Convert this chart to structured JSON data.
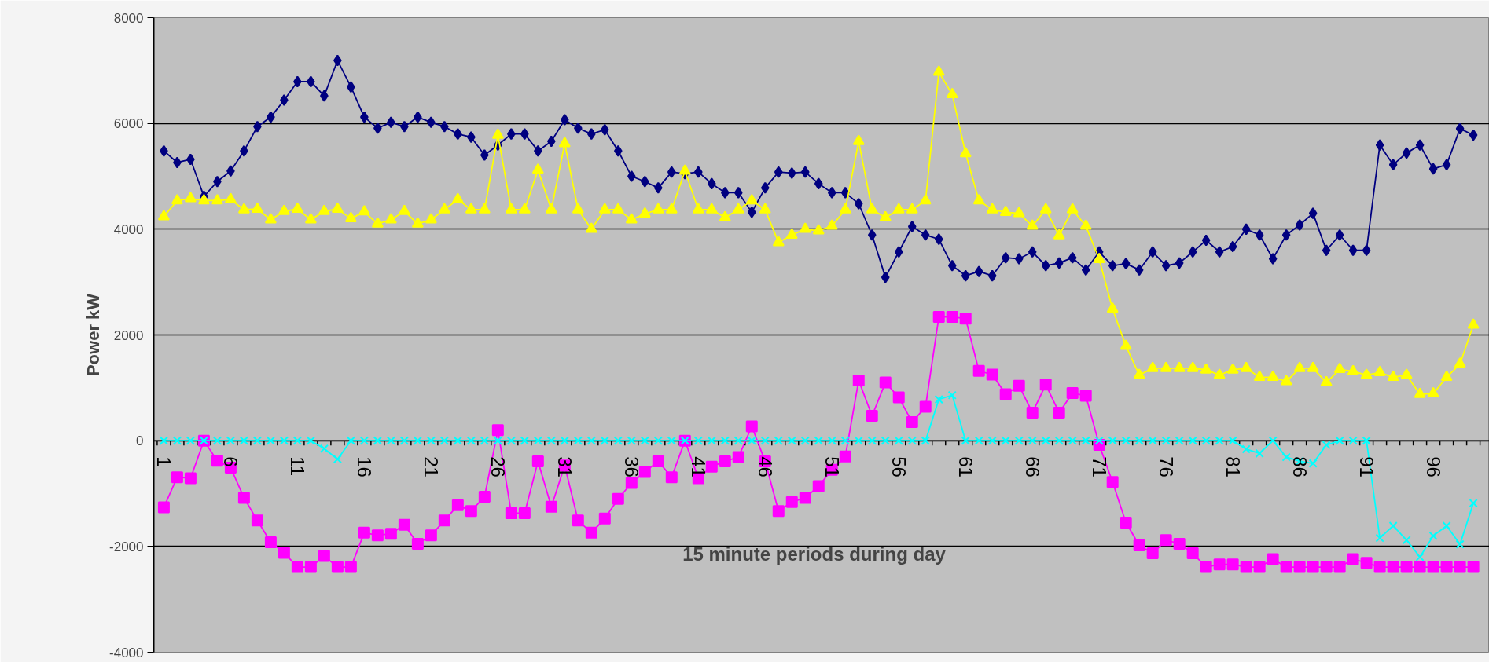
{
  "chart_data": {
    "type": "line",
    "xlabel": "15 minute periods during day",
    "ylabel": "Power kW",
    "categories": [
      "1",
      null,
      null,
      null,
      null,
      "6",
      null,
      null,
      null,
      null,
      "11",
      null,
      null,
      null,
      null,
      "16",
      null,
      null,
      null,
      null,
      "21",
      null,
      null,
      null,
      null,
      "26",
      null,
      null,
      null,
      null,
      "31",
      null,
      null,
      null,
      null,
      "36",
      null,
      null,
      null,
      null,
      "41",
      null,
      null,
      null,
      null,
      "46",
      null,
      null,
      null,
      null,
      "51",
      null,
      null,
      null,
      null,
      "56",
      null,
      null,
      null,
      null,
      "61",
      null,
      null,
      null,
      null,
      "66",
      null,
      null,
      null,
      null,
      "71",
      null,
      null,
      null,
      null,
      "76",
      null,
      null,
      null,
      null,
      "81",
      null,
      null,
      null,
      null,
      "86",
      null,
      null,
      null,
      null,
      "91",
      null,
      null,
      null,
      null,
      "96",
      null,
      null,
      null
    ],
    "ylim": [
      -4000,
      8000
    ],
    "yticks": [
      -4000,
      -2000,
      0,
      2000,
      4000,
      6000,
      8000
    ],
    "grid": "y",
    "series": [
      {
        "color": "#000080",
        "marker": "diamond",
        "values": [
          5480,
          5260,
          5320,
          4620,
          4900,
          5100,
          5480,
          5940,
          6120,
          6440,
          6790,
          6790,
          6520,
          7190,
          6690,
          6120,
          5910,
          6020,
          5940,
          6120,
          6020,
          5940,
          5800,
          5740,
          5400,
          5590,
          5800,
          5800,
          5480,
          5660,
          6070,
          5910,
          5800,
          5880,
          5480,
          5000,
          4900,
          4780,
          5080,
          5050,
          5080,
          4860,
          4690,
          4690,
          4320,
          4780,
          5080,
          5060,
          5080,
          4860,
          4690,
          4690,
          4480,
          3890,
          3090,
          3570,
          4050,
          3890,
          3810,
          3310,
          3120,
          3200,
          3120,
          3460,
          3440,
          3570,
          3310,
          3360,
          3460,
          3230,
          3570,
          3310,
          3350,
          3230,
          3570,
          3310,
          3360,
          3570,
          3790,
          3570,
          3670,
          4000,
          3890,
          3440,
          3890,
          4080,
          4300,
          3600,
          3890,
          3600,
          3600,
          5590,
          5220,
          5440,
          5590,
          5140,
          5220,
          5900,
          5780
        ]
      },
      {
        "color": "#ffff00",
        "marker": "triangle",
        "values": [
          4240,
          4540,
          4580,
          4540,
          4540,
          4560,
          4370,
          4380,
          4180,
          4340,
          4380,
          4180,
          4340,
          4380,
          4200,
          4330,
          4100,
          4180,
          4340,
          4100,
          4180,
          4370,
          4560,
          4370,
          4370,
          5780,
          4370,
          4370,
          5120,
          4370,
          5620,
          4370,
          4000,
          4370,
          4370,
          4180,
          4290,
          4370,
          4370,
          5100,
          4370,
          4370,
          4220,
          4370,
          4540,
          4370,
          3750,
          3890,
          4000,
          3970,
          4060,
          4370,
          5660,
          4370,
          4220,
          4370,
          4370,
          4540,
          6970,
          6550,
          5430,
          4540,
          4370,
          4320,
          4300,
          4060,
          4370,
          3880,
          4370,
          4060,
          3430,
          2490,
          1790,
          1240,
          1370,
          1370,
          1370,
          1370,
          1340,
          1240,
          1340,
          1370,
          1200,
          1200,
          1120,
          1370,
          1370,
          1100,
          1350,
          1310,
          1240,
          1290,
          1200,
          1240,
          880,
          890,
          1200,
          1450,
          2190
        ]
      },
      {
        "color": "#ff00ff",
        "marker": "square",
        "values": [
          -1260,
          -690,
          -710,
          0,
          -380,
          -510,
          -1080,
          -1510,
          -1920,
          -2120,
          -2390,
          -2390,
          -2180,
          -2390,
          -2390,
          -1740,
          -1790,
          -1760,
          -1590,
          -1950,
          -1790,
          -1510,
          -1220,
          -1330,
          -1060,
          200,
          -1370,
          -1370,
          -390,
          -1250,
          -470,
          -1510,
          -1740,
          -1470,
          -1100,
          -800,
          -590,
          -390,
          -690,
          0,
          -710,
          -490,
          -390,
          -310,
          270,
          -390,
          -1330,
          -1160,
          -1080,
          -860,
          -550,
          -300,
          1140,
          470,
          1100,
          820,
          350,
          640,
          2340,
          2340,
          2310,
          1320,
          1250,
          880,
          1040,
          530,
          1060,
          530,
          900,
          850,
          -80,
          -780,
          -1550,
          -1980,
          -2130,
          -1880,
          -1950,
          -2130,
          -2390,
          -2340,
          -2340,
          -2390,
          -2390,
          -2240,
          -2390,
          -2390,
          -2390,
          -2390,
          -2390,
          -2240,
          -2310,
          -2390,
          -2390,
          -2390,
          -2390,
          -2390,
          -2390,
          -2390,
          -2390
        ]
      },
      {
        "color": "#00ffff",
        "marker": "cross",
        "values": [
          0,
          0,
          0,
          0,
          0,
          0,
          0,
          0,
          0,
          0,
          0,
          0,
          -150,
          -350,
          0,
          0,
          0,
          0,
          0,
          0,
          0,
          0,
          0,
          0,
          0,
          0,
          0,
          0,
          0,
          0,
          0,
          0,
          0,
          0,
          0,
          0,
          0,
          0,
          0,
          0,
          0,
          0,
          0,
          0,
          0,
          0,
          0,
          0,
          0,
          0,
          0,
          0,
          0,
          0,
          0,
          0,
          0,
          0,
          780,
          860,
          0,
          0,
          0,
          0,
          0,
          0,
          0,
          0,
          0,
          0,
          0,
          0,
          0,
          0,
          0,
          0,
          0,
          0,
          0,
          0,
          0,
          -160,
          -240,
          0,
          -310,
          -390,
          -430,
          -80,
          0,
          0,
          0,
          -1840,
          -1610,
          -1880,
          -2200,
          -1800,
          -1610,
          -1960,
          -1180
        ]
      }
    ]
  }
}
